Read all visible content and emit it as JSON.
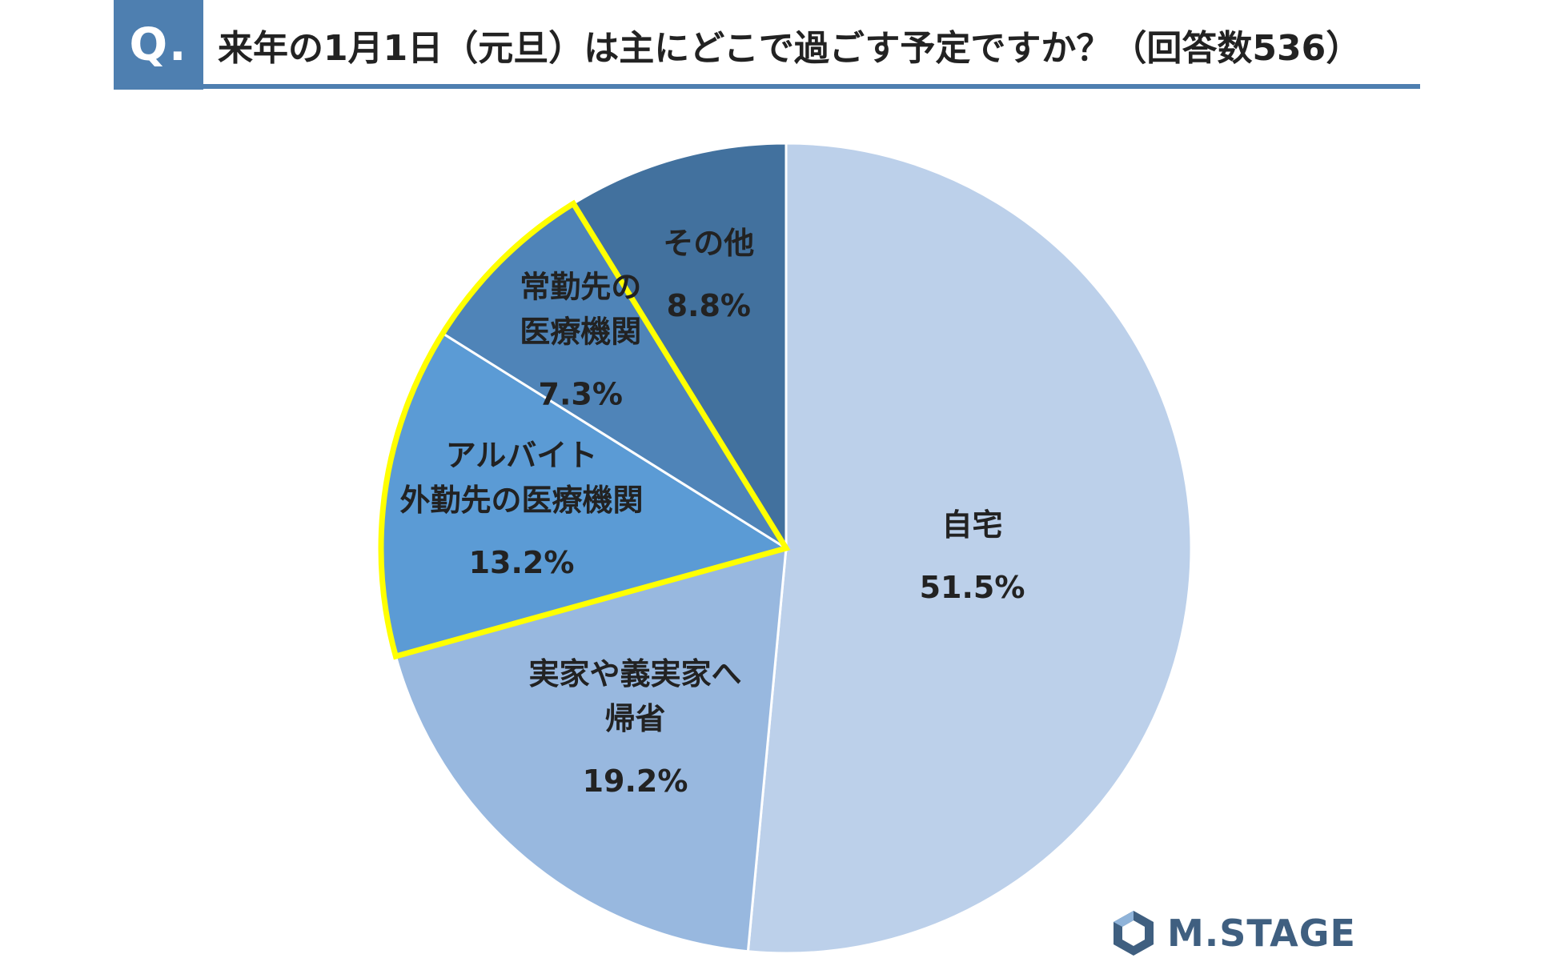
{
  "header": {
    "badge": "Q.",
    "question": "来年の1月1日（元旦）は主にどこで過ごす予定ですか？（回答数536）"
  },
  "chart_data": {
    "type": "pie",
    "title": "来年の1月1日（元旦）は主にどこで過ごす予定ですか？（回答数536）",
    "slices": [
      {
        "label": [
          "自宅"
        ],
        "value": 51.5,
        "value_label": "51.5%",
        "color": "#bcd0ea",
        "highlight": false
      },
      {
        "label": [
          "実家や義実家へ",
          "帰省"
        ],
        "value": 19.2,
        "value_label": "19.2%",
        "color": "#98b8df",
        "highlight": false
      },
      {
        "label": [
          "アルバイト",
          "外勤先の医療機関"
        ],
        "value": 13.2,
        "value_label": "13.2%",
        "color": "#5b9bd5",
        "highlight": true
      },
      {
        "label": [
          "常勤先の",
          "医療機関"
        ],
        "value": 7.3,
        "value_label": "7.3%",
        "color": "#4f84b8",
        "highlight": true
      },
      {
        "label": [
          "その他"
        ],
        "value": 8.8,
        "value_label": "8.8%",
        "color": "#42719e",
        "highlight": false
      }
    ],
    "start": "12 o'clock",
    "direction": "clockwise",
    "highlight_color": "#ffff00",
    "legend": "none"
  },
  "logo": {
    "text": "M.STAGE",
    "color": "#3f5f80",
    "icon": "hexagon-logo-icon"
  }
}
